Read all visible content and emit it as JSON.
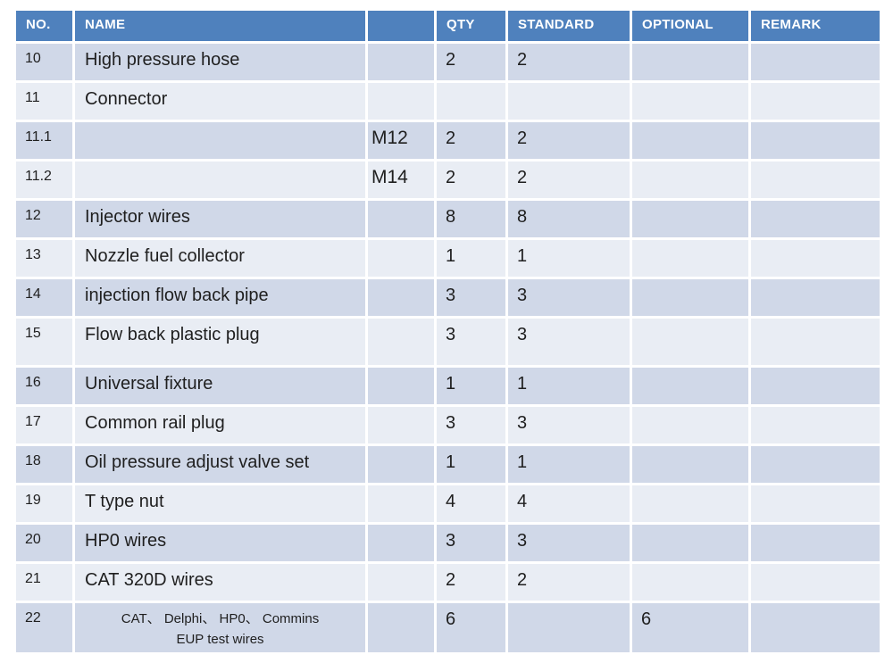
{
  "table": {
    "columns": [
      {
        "key": "no",
        "label": "NO."
      },
      {
        "key": "name",
        "label": "NAME"
      },
      {
        "key": "size",
        "label": ""
      },
      {
        "key": "qty",
        "label": "QTY"
      },
      {
        "key": "standard",
        "label": "STANDARD"
      },
      {
        "key": "optional",
        "label": "OPTIONAL"
      },
      {
        "key": "remark",
        "label": "REMARK"
      }
    ],
    "rows": [
      {
        "no": "10",
        "name": "High pressure hose",
        "size": "",
        "qty": "2",
        "standard": "2",
        "optional": "",
        "remark": ""
      },
      {
        "no": "11",
        "name": "Connector",
        "size": "",
        "qty": "",
        "standard": "",
        "optional": "",
        "remark": ""
      },
      {
        "no": "11.1",
        "name": "",
        "size": "M12",
        "qty": "2",
        "standard": "2",
        "optional": "",
        "remark": ""
      },
      {
        "no": "11.2",
        "name": "",
        "size": "M14",
        "qty": "2",
        "standard": "2",
        "optional": "",
        "remark": ""
      },
      {
        "no": "12",
        "name": "Injector wires",
        "size": "",
        "qty": "8",
        "standard": "8",
        "optional": "",
        "remark": ""
      },
      {
        "no": "13",
        "name": "Nozzle fuel collector",
        "size": "",
        "qty": "1",
        "standard": "1",
        "optional": "",
        "remark": ""
      },
      {
        "no": "14",
        "name": "injection flow back pipe",
        "size": "",
        "qty": "3",
        "standard": "3",
        "optional": "",
        "remark": ""
      },
      {
        "no": "15",
        "name": "Flow back plastic plug",
        "size": "",
        "qty": "3",
        "standard": "3",
        "optional": "",
        "remark": ""
      },
      {
        "no": "16",
        "name": "Universal fixture",
        "size": "",
        "qty": "1",
        "standard": "1",
        "optional": "",
        "remark": ""
      },
      {
        "no": "17",
        "name": "Common rail plug",
        "size": "",
        "qty": "3",
        "standard": "3",
        "optional": "",
        "remark": ""
      },
      {
        "no": "18",
        "name": "Oil pressure adjust valve set",
        "size": "",
        "qty": "1",
        "standard": "1",
        "optional": "",
        "remark": ""
      },
      {
        "no": "19",
        "name": "T type nut",
        "size": "",
        "qty": "4",
        "standard": "4",
        "optional": "",
        "remark": ""
      },
      {
        "no": "20",
        "name": "HP0 wires",
        "size": "",
        "qty": "3",
        "standard": "3",
        "optional": "",
        "remark": ""
      },
      {
        "no": "21",
        "name": "CAT 320D wires",
        "size": "",
        "qty": "2",
        "standard": "2",
        "optional": "",
        "remark": ""
      },
      {
        "no": "22",
        "name": "CAT、 Delphi、 HP0、 Commins\nEUP test wires",
        "size": "",
        "qty": "6",
        "standard": "",
        "optional": "6",
        "remark": ""
      }
    ],
    "colors": {
      "header_bg": "#4f81bd",
      "header_text": "#ffffff",
      "band_dark": "#d0d8e8",
      "band_light": "#e9edf4",
      "gutter": "#ffffff",
      "text": "#1f1f1f"
    }
  }
}
